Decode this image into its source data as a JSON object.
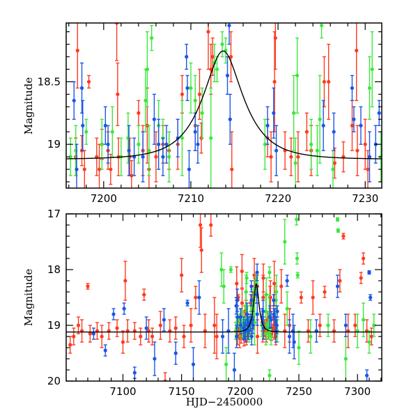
{
  "chart_data": [
    {
      "type": "scatter",
      "panel": "top",
      "title": "",
      "xlabel": "",
      "ylabel": "Magnitude",
      "xlim": [
        7195.7,
        7231.9
      ],
      "ylim": [
        19.35,
        18.03
      ],
      "y_inverted": true,
      "xticks": [
        7200,
        7210,
        7220,
        7230
      ],
      "xtick_labels": [
        "7200",
        "7210",
        "7220",
        "7230"
      ],
      "yticks": [
        18.5,
        19
      ],
      "ytick_labels": [
        "18.5",
        "19"
      ],
      "grid": false
    },
    {
      "type": "scatter",
      "panel": "bottom",
      "title": "",
      "xlabel": "HJD−2450000",
      "ylabel": "Magnitude",
      "xlim": [
        7051.6,
        7320.7
      ],
      "ylim": [
        20,
        17
      ],
      "y_inverted": true,
      "xticks": [
        7100,
        7150,
        7200,
        7250,
        7300
      ],
      "xtick_labels": [
        "7100",
        "7150",
        "7200",
        "7250",
        "7300"
      ],
      "yticks": [
        17,
        18,
        19,
        20
      ],
      "ytick_labels": [
        "17",
        "18",
        "19",
        "20"
      ],
      "grid": false
    }
  ],
  "model": {
    "name": "microlensing-fit",
    "baseline_mag": 19.12,
    "t0": 7213.7,
    "u0": 0.49,
    "tE": 4.0,
    "color": "#000000"
  },
  "series": [
    {
      "name": "red",
      "color": "#ff3a1e",
      "points": [
        [
          7196.8,
          19.1,
          0.15
        ],
        [
          7197,
          18.25,
          0.3
        ],
        [
          7197.5,
          19.05,
          0.12
        ],
        [
          7197.8,
          19.2,
          0.15
        ],
        [
          7198.3,
          18.5,
          0.05
        ],
        [
          7199.2,
          19.1,
          0.15
        ],
        [
          7199.5,
          19.2,
          0.2
        ],
        [
          7199.8,
          19.0,
          0.12
        ],
        [
          7200.5,
          19.05,
          0.15
        ],
        [
          7200.8,
          19.2,
          0.12
        ],
        [
          7201.5,
          18.03,
          0.3
        ],
        [
          7201.6,
          18.6,
          0.25
        ],
        [
          7201.7,
          19.1,
          0.15
        ],
        [
          7203,
          19.1,
          0.15
        ],
        [
          7203.2,
          19.25,
          0.12
        ],
        [
          7204,
          18.75,
          0.1
        ],
        [
          7204.5,
          19.05,
          0.2
        ],
        [
          7205,
          18.85,
          0.3
        ],
        [
          7205.2,
          19.2,
          0.15
        ],
        [
          7206,
          19.1,
          0.2
        ],
        [
          7206.8,
          19.0,
          0.15
        ],
        [
          7207.5,
          19.05,
          0.15
        ],
        [
          7208.5,
          19.0,
          0.2
        ],
        [
          7209,
          18.6,
          0.15
        ],
        [
          7210.5,
          18.85,
          0.2
        ],
        [
          7211,
          18.6,
          0.2
        ],
        [
          7211.2,
          18.95,
          0.12
        ],
        [
          7212,
          18.1,
          0.3
        ],
        [
          7212.3,
          18.4,
          0.2
        ],
        [
          7212.5,
          18.3,
          0.15
        ],
        [
          7214.6,
          18.3,
          0.2
        ],
        [
          7214.7,
          19.2,
          0.3
        ],
        [
          7218.8,
          18.95,
          0.15
        ],
        [
          7219.2,
          19.1,
          0.2
        ],
        [
          7219.6,
          18.5,
          0.4
        ],
        [
          7219.7,
          18.15,
          0.25
        ],
        [
          7220.8,
          19.05,
          0.15
        ],
        [
          7221.5,
          19.1,
          0.15
        ],
        [
          7222.3,
          19.1,
          0.2
        ],
        [
          7223.3,
          18.9,
          0.15
        ],
        [
          7223.8,
          19.05,
          0.2
        ],
        [
          7225.3,
          18.5,
          0.2
        ],
        [
          7225.8,
          18.5,
          0.3
        ],
        [
          7226.5,
          19.15,
          0.12
        ],
        [
          7227.5,
          19.1,
          0.12
        ],
        [
          7228.5,
          18.85,
          0.2
        ],
        [
          7229,
          18.25,
          0.4
        ],
        [
          7229.1,
          19.05,
          0.2
        ],
        [
          7230,
          19.0,
          0.2
        ],
        [
          7230.3,
          19.2,
          0.15
        ],
        [
          7055,
          19.35,
          0.15
        ],
        [
          7058,
          19.2,
          0.15
        ],
        [
          7062,
          19.0,
          0.15
        ],
        [
          7065,
          19.1,
          0.2
        ],
        [
          7070,
          18.3,
          0.05
        ],
        [
          7072,
          19.15,
          0.15
        ],
        [
          7078,
          19.1,
          0.15
        ],
        [
          7082,
          19.2,
          0.2
        ],
        [
          7088,
          19.1,
          0.15
        ],
        [
          7095,
          19.05,
          0.15
        ],
        [
          7100,
          19.3,
          0.2
        ],
        [
          7102,
          18.2,
          0.35
        ],
        [
          7104,
          19.1,
          0.2
        ],
        [
          7110,
          19.1,
          0.15
        ],
        [
          7115,
          19.2,
          0.15
        ],
        [
          7118,
          18.45,
          0.1
        ],
        [
          7122,
          19.1,
          0.2
        ],
        [
          7125,
          19.2,
          0.15
        ],
        [
          7132,
          19.0,
          0.25
        ],
        [
          7136,
          20.0,
          0.15
        ],
        [
          7140,
          19.1,
          0.2
        ],
        [
          7145,
          19.05,
          0.2
        ],
        [
          7150,
          18.1,
          0.3
        ],
        [
          7152,
          19.2,
          0.2
        ],
        [
          7158,
          19.0,
          0.3
        ],
        [
          7162,
          18.5,
          0.2
        ],
        [
          7166,
          17.2,
          0.4
        ],
        [
          7167,
          17.65,
          0.4
        ],
        [
          7170,
          19.1,
          0.3
        ],
        [
          7175,
          17.2,
          0.2
        ],
        [
          7178,
          19.0,
          0.5
        ],
        [
          7180,
          19.2,
          0.4
        ],
        [
          7235,
          18.3,
          0.3
        ],
        [
          7238,
          19.1,
          0.3
        ],
        [
          7242,
          19.0,
          0.3
        ],
        [
          7252,
          18.5,
          0.1
        ],
        [
          7258,
          19.1,
          0.2
        ],
        [
          7262,
          18.5,
          0.3
        ],
        [
          7268,
          19.0,
          0.2
        ],
        [
          7272,
          18.4,
          0.1
        ],
        [
          7280,
          19.1,
          0.2
        ],
        [
          7285,
          18.2,
          0.2
        ],
        [
          7288,
          17.4,
          0.05
        ],
        [
          7292,
          19.1,
          0.3
        ],
        [
          7298,
          19.0,
          0.2
        ],
        [
          7303,
          18.15,
          0.1
        ],
        [
          7305,
          17.8,
          0.1
        ],
        [
          7308,
          19.1,
          0.2
        ],
        [
          7312,
          19.2,
          0.15
        ]
      ]
    },
    {
      "name": "green",
      "color": "#3ae83a",
      "points": [
        [
          7196.2,
          19.1,
          0.15
        ],
        [
          7196.8,
          19.05,
          0.2
        ],
        [
          7198,
          18.9,
          0.1
        ],
        [
          7199.8,
          19.0,
          0.2
        ],
        [
          7201,
          18.9,
          0.2
        ],
        [
          7202,
          19.1,
          0.15
        ],
        [
          7202.8,
          18.95,
          0.2
        ],
        [
          7204,
          19.0,
          0.15
        ],
        [
          7204.8,
          18.65,
          0.25
        ],
        [
          7205,
          18.4,
          0.3
        ],
        [
          7205.2,
          19.05,
          0.2
        ],
        [
          7205.5,
          18.15,
          0.1
        ],
        [
          7206.3,
          18.85,
          0.2
        ],
        [
          7206.8,
          18.95,
          0.15
        ],
        [
          7207.5,
          19.1,
          0.2
        ],
        [
          7209,
          18.95,
          0.3
        ],
        [
          7210,
          18.55,
          0.2
        ],
        [
          7210.5,
          18.65,
          0.2
        ],
        [
          7211.3,
          18.75,
          0.2
        ],
        [
          7212.3,
          18.95,
          0.4
        ],
        [
          7212.7,
          18.35,
          0.15
        ],
        [
          7213,
          18.4,
          0.1
        ],
        [
          7213.6,
          18.2,
          0.1
        ],
        [
          7214,
          18.25,
          0.1
        ],
        [
          7218.5,
          19.0,
          0.2
        ],
        [
          7221.8,
          18.75,
          0.3
        ],
        [
          7222,
          19.15,
          0.2
        ],
        [
          7222.2,
          18.45,
          0.3
        ],
        [
          7223.8,
          19.0,
          0.2
        ],
        [
          7224.5,
          19.05,
          0.2
        ],
        [
          7224.8,
          18.8,
          0.35
        ],
        [
          7225.0,
          18.05,
          0.1
        ],
        [
          7226.3,
          19.2,
          0.15
        ],
        [
          7230.5,
          18.55,
          0.25
        ],
        [
          7230.8,
          18.4,
          0.3
        ],
        [
          7231.8,
          19.1,
          0.2
        ],
        [
          7184,
          18.0,
          0.3
        ],
        [
          7186,
          18.3,
          0.3
        ],
        [
          7188,
          19.7,
          0.3
        ],
        [
          7192,
          18.0,
          0.05
        ],
        [
          7225,
          19.9,
          0.1
        ],
        [
          7238,
          17.5,
          0.4
        ],
        [
          7240,
          18.7,
          0.3
        ],
        [
          7248,
          17.1,
          0.1
        ],
        [
          7248.5,
          17.8,
          0.1
        ],
        [
          7249,
          18.1,
          0.05
        ],
        [
          7250,
          19.4,
          0.3
        ],
        [
          7260,
          19.2,
          0.3
        ],
        [
          7275,
          19.0,
          0.2
        ],
        [
          7283,
          17.1,
          0.03
        ],
        [
          7283.5,
          17.3,
          0.03
        ],
        [
          7290,
          19.6,
          0.4
        ],
        [
          7300,
          19.1,
          0.3
        ],
        [
          7305,
          18.9,
          0.3
        ],
        [
          7310,
          19.3,
          0.2
        ],
        [
          7314,
          19.0,
          0.2
        ]
      ]
    },
    {
      "name": "blue",
      "color": "#1a55e8",
      "points": [
        [
          7196.6,
          18.65,
          0.15
        ],
        [
          7196.9,
          19.2,
          0.2
        ],
        [
          7197.5,
          18.55,
          0.2
        ],
        [
          7197.6,
          18.85,
          0.2
        ],
        [
          7200.2,
          18.85,
          0.15
        ],
        [
          7200.5,
          19.0,
          0.15
        ],
        [
          7202.9,
          19.05,
          0.2
        ],
        [
          7203.5,
          19.1,
          0.15
        ],
        [
          7204.5,
          19.1,
          0.2
        ],
        [
          7205.8,
          18.8,
          0.2
        ],
        [
          7206.3,
          19.0,
          0.2
        ],
        [
          7206.8,
          19.1,
          0.15
        ],
        [
          7207.2,
          19.0,
          0.15
        ],
        [
          7208.5,
          18.95,
          0.15
        ],
        [
          7209.5,
          18.3,
          0.1
        ],
        [
          7209.6,
          18.55,
          0.1
        ],
        [
          7209.8,
          19.2,
          0.15
        ],
        [
          7210.5,
          18.9,
          0.15
        ],
        [
          7210.8,
          19.0,
          0.15
        ],
        [
          7214.2,
          18.45,
          0.15
        ],
        [
          7214.4,
          18.05,
          0.15
        ],
        [
          7214.5,
          18.8,
          0.2
        ],
        [
          7218.8,
          18.85,
          0.15
        ],
        [
          7219.5,
          18.75,
          0.2
        ],
        [
          7219.8,
          19.05,
          0.2
        ],
        [
          7225.2,
          18.85,
          0.2
        ],
        [
          7226.4,
          18.9,
          0.15
        ],
        [
          7228.5,
          18.55,
          0.1
        ],
        [
          7228.7,
          18.8,
          0.1
        ],
        [
          7229.5,
          18.85,
          0.15
        ],
        [
          7230.5,
          19.1,
          0.2
        ],
        [
          7231.2,
          19.0,
          0.15
        ],
        [
          7231.6,
          18.75,
          0.1
        ],
        [
          7075,
          19.15,
          0.1
        ],
        [
          7085,
          19.45,
          0.1
        ],
        [
          7092,
          18.8,
          0.1
        ],
        [
          7101,
          18.7,
          0.1
        ],
        [
          7110,
          19.85,
          0.1
        ],
        [
          7120,
          19.05,
          0.2
        ],
        [
          7127,
          19.6,
          0.3
        ],
        [
          7135,
          18.9,
          0.2
        ],
        [
          7145,
          19.5,
          0.2
        ],
        [
          7155,
          18.6,
          0.05
        ],
        [
          7160,
          19.7,
          0.3
        ],
        [
          7165,
          18.5,
          0.3
        ],
        [
          7185,
          19.2,
          0.3
        ],
        [
          7190,
          19.1,
          0.4
        ],
        [
          7195,
          19.8,
          0.3
        ],
        [
          7240,
          18.2,
          0.1
        ],
        [
          7242,
          19.2,
          0.3
        ],
        [
          7245,
          19.1,
          0.3
        ],
        [
          7246,
          19.3,
          0.3
        ],
        [
          7265,
          19.1,
          0.2
        ],
        [
          7283,
          18.3,
          0.2
        ],
        [
          7290,
          19.0,
          0.2
        ],
        [
          7308,
          19.9,
          0.1
        ],
        [
          7310,
          18.05,
          0.03
        ],
        [
          7311,
          18.5,
          0.05
        ]
      ]
    }
  ]
}
